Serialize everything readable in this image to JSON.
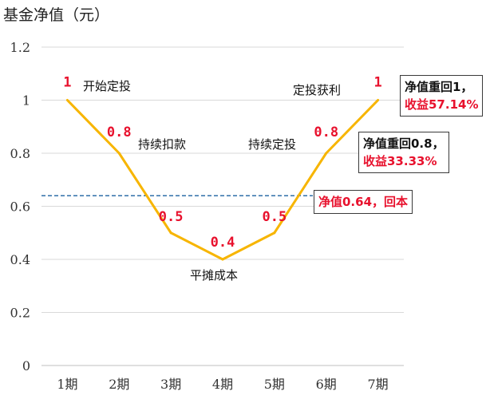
{
  "chart_data": {
    "type": "line",
    "title": "",
    "ylabel": "基金净值（元）",
    "xlabel": "",
    "categories": [
      "1期",
      "2期",
      "3期",
      "4期",
      "5期",
      "6期",
      "7期"
    ],
    "y_tick_labels": [
      "0",
      "0.2",
      "0.4",
      "0.6",
      "0.8",
      "1",
      "1.2"
    ],
    "ylim": [
      0,
      1.2
    ],
    "grid": "horizontal",
    "series": [
      {
        "values": [
          1,
          0.8,
          0.5,
          0.4,
          0.5,
          0.8,
          1
        ],
        "color": "#f7b500"
      }
    ],
    "data_labels": [
      "1",
      "0.8",
      "0.5",
      "0.4",
      "0.5",
      "0.8",
      "1"
    ],
    "reference_line": {
      "value": 0.64,
      "style": "dashed",
      "color": "#2f6fa8"
    },
    "annotations": [
      {
        "text": "开始定投"
      },
      {
        "text": "持续扣款"
      },
      {
        "text": "平摊成本"
      },
      {
        "text": "持续定投"
      },
      {
        "text": "定投获利"
      }
    ],
    "callouts": [
      {
        "line1": "净值重回1，",
        "line2": "收益57.14%"
      },
      {
        "line1": "净值重回0.8，",
        "line2": "收益33.33%"
      },
      {
        "line1": "净值0.64，回本"
      }
    ],
    "colors": {
      "data_label": "#e8112d",
      "highlight": "#e8112d",
      "grid": "#d9d9d9"
    }
  }
}
